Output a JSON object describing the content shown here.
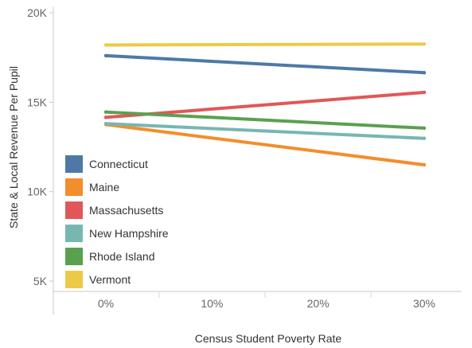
{
  "chart_data": {
    "type": "line",
    "xlabel": "Census Student Poverty Rate",
    "ylabel": "State & Local Revenue Per Pupil",
    "x": [
      0,
      30
    ],
    "x_ticks": [
      {
        "value": 0,
        "label": "0%"
      },
      {
        "value": 10,
        "label": "10%"
      },
      {
        "value": 20,
        "label": "20%"
      },
      {
        "value": 30,
        "label": "30%"
      }
    ],
    "y_ticks": [
      {
        "value": 5000,
        "label": "5K"
      },
      {
        "value": 10000,
        "label": "10K"
      },
      {
        "value": 15000,
        "label": "15K"
      },
      {
        "value": 20000,
        "label": "20K"
      }
    ],
    "xlim": [
      -5,
      35
    ],
    "ylim": [
      5000,
      20000
    ],
    "grid": false,
    "legend_position": "bottom-left",
    "series": [
      {
        "name": "Connecticut",
        "color": "#4e79a7",
        "values": [
          17600,
          16650
        ]
      },
      {
        "name": "Maine",
        "color": "#f28e2b",
        "values": [
          13750,
          11500
        ]
      },
      {
        "name": "Massachusetts",
        "color": "#e15759",
        "values": [
          14150,
          15550
        ]
      },
      {
        "name": "New Hampshire",
        "color": "#76b7b2",
        "values": [
          13800,
          12980
        ]
      },
      {
        "name": "Rhode Island",
        "color": "#59a14f",
        "values": [
          14450,
          13550
        ]
      },
      {
        "name": "Vermont",
        "color": "#edc948",
        "values": [
          18200,
          18250
        ]
      }
    ]
  }
}
